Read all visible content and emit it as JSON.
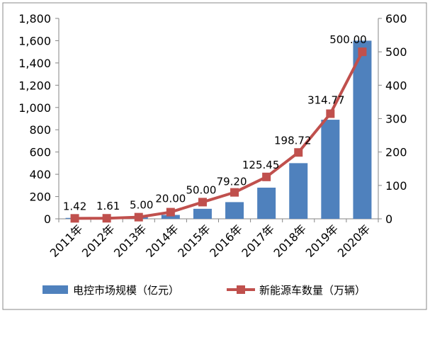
{
  "chart_data": {
    "type": "bar+line",
    "categories": [
      "2011年",
      "2012年",
      "2013年",
      "2014年",
      "2015年",
      "2016年",
      "2017年",
      "2018年",
      "2019年",
      "2020年"
    ],
    "series": [
      {
        "name": "电控市场规模（亿元）",
        "type": "bar",
        "axis": "left",
        "color": "#4f81bd",
        "values": [
          8,
          12,
          20,
          35,
          90,
          150,
          280,
          500,
          890,
          1600
        ]
      },
      {
        "name": "新能源车数量（万辆）",
        "type": "line",
        "axis": "right",
        "color": "#c0504d",
        "values": [
          1.42,
          1.61,
          5.0,
          20.0,
          50.0,
          79.2,
          125.45,
          198.72,
          314.77,
          500.0
        ],
        "data_labels": [
          "1.42",
          "1.61",
          "5.00",
          "20.00",
          "50.00",
          "79.20",
          "125.45",
          "198.72",
          "314.77",
          "500.00"
        ]
      }
    ],
    "y_left": {
      "ylim": [
        0,
        1800
      ],
      "ticks": [
        "0",
        "200",
        "400",
        "600",
        "800",
        "1,000",
        "1,200",
        "1,400",
        "1,600",
        "1,800"
      ]
    },
    "y_right": {
      "ylim": [
        0,
        600
      ],
      "ticks": [
        "0",
        "100",
        "200",
        "300",
        "400",
        "500",
        "600"
      ]
    },
    "grid": false,
    "legend_position": "bottom"
  }
}
